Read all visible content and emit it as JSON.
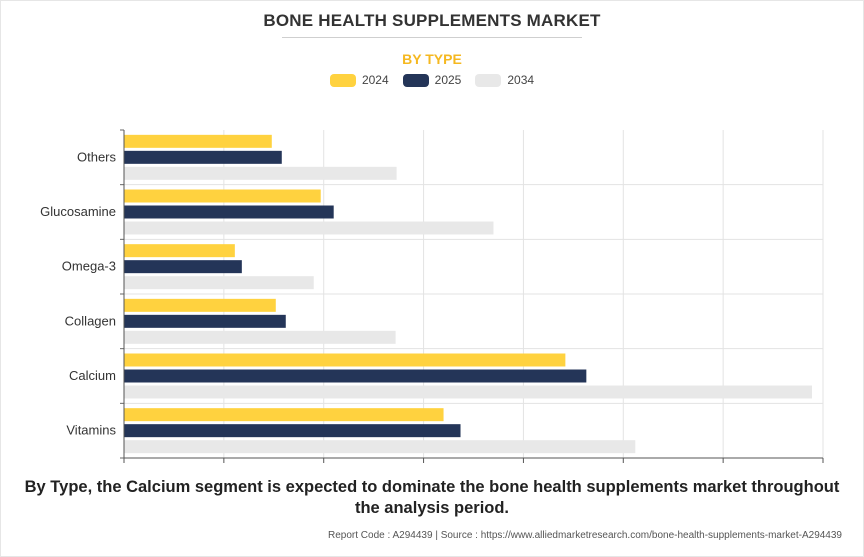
{
  "header": {
    "title": "BONE HEALTH SUPPLEMENTS MARKET",
    "subtitle": "BY TYPE"
  },
  "colors": {
    "2024": "#ffd23f",
    "2025": "#243558",
    "2034": "#e8e8e8",
    "grid": "#e3e3e3",
    "subtitle": "#f5b820"
  },
  "chart_data": {
    "type": "bar",
    "orientation": "horizontal",
    "title": "BONE HEALTH SUPPLEMENTS MARKET",
    "subtitle": "BY TYPE",
    "categories": [
      "Others",
      "Glucosamine",
      "Omega-3",
      "Collagen",
      "Calcium",
      "Vitamins"
    ],
    "series": [
      {
        "name": "2024",
        "values": [
          1.48,
          1.97,
          1.11,
          1.52,
          4.42,
          3.2
        ]
      },
      {
        "name": "2025",
        "values": [
          1.58,
          2.1,
          1.18,
          1.62,
          4.63,
          3.37
        ]
      },
      {
        "name": "2034",
        "values": [
          2.73,
          3.7,
          1.9,
          2.72,
          6.89,
          5.12
        ]
      }
    ],
    "xlim": [
      0,
      7
    ],
    "x_ticks": [
      0,
      1,
      2,
      3,
      4,
      5,
      6,
      7
    ],
    "xlabel": "",
    "ylabel": "",
    "grid": true,
    "legend": "top-center",
    "tick_labels_shown": false
  },
  "caption": "By Type, the Calcium segment is expected to dominate the bone health supplements market throughout the analysis period.",
  "footer": "Report Code : A294439  |  Source : https://www.alliedmarketresearch.com/bone-health-supplements-market-A294439"
}
